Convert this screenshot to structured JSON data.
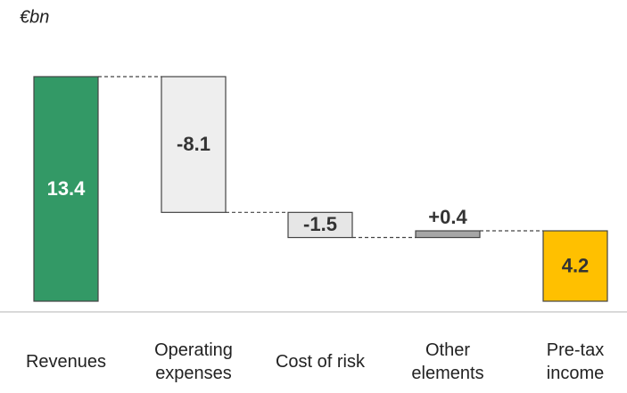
{
  "chart_data": {
    "type": "waterfall",
    "unit_label": "€bn",
    "categories": [
      "Revenues",
      "Operating expenses",
      "Cost of risk",
      "Other elements",
      "Pre-tax income"
    ],
    "values": [
      13.4,
      -8.1,
      -1.5,
      0.4,
      4.2
    ],
    "value_labels": [
      "13.4",
      "-8.1",
      "-1.5",
      "+0.4",
      "4.2"
    ],
    "measure": [
      "absolute",
      "relative",
      "relative",
      "relative",
      "total"
    ],
    "colors": [
      "#339966",
      "#eeeeee",
      "#e6e6e6",
      "#a6a6a6",
      "#ffc000"
    ],
    "label_colors": [
      "#ffffff",
      "#333333",
      "#333333",
      "#333333",
      "#333333"
    ]
  }
}
